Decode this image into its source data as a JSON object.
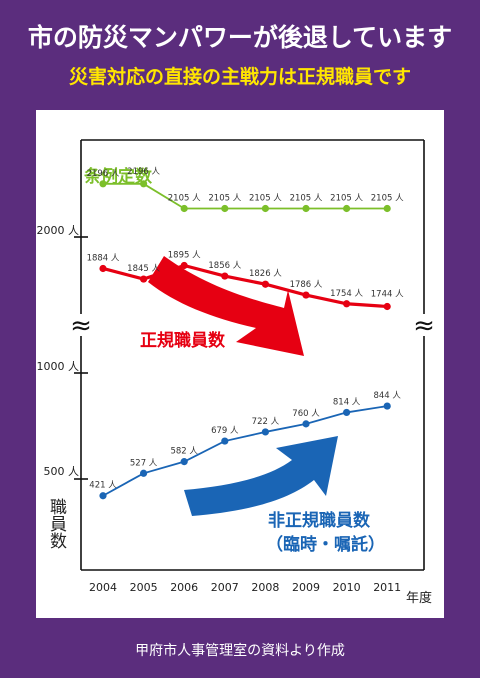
{
  "header": {
    "title": "市の防災マンパワーが後退しています",
    "subtitle": "災害対応の直接の主戦力は正規職員です"
  },
  "footer": {
    "source": "甲府市人事管理室の資料より作成"
  },
  "chart_data": {
    "type": "line",
    "x": [
      "2004",
      "2005",
      "2006",
      "2007",
      "2008",
      "2009",
      "2010",
      "2011"
    ],
    "xlabel": "年度",
    "ylabel": "職員数",
    "yticks": [
      "500 人",
      "1000 人",
      "2000 人"
    ],
    "axis_break_symbol": "≈",
    "series": [
      {
        "name": "条例定数",
        "color": "#7cbf2a",
        "values": [
          2196,
          2196,
          2105,
          2105,
          2105,
          2105,
          2105,
          2105
        ],
        "labels": [
          "2196 人",
          "2196 人",
          "2105 人",
          "2105 人",
          "2105 人",
          "2105 人",
          "2105 人",
          "2105 人"
        ]
      },
      {
        "name": "正規職員数",
        "color": "#e60012",
        "values": [
          1884,
          1845,
          1895,
          1856,
          1826,
          1786,
          1754,
          1744
        ],
        "labels": [
          "1884 人",
          "1845 人",
          "1895 人",
          "1856 人",
          "1826 人",
          "1786 人",
          "1754 人",
          "1744 人"
        ]
      },
      {
        "name": "非正規職員数",
        "name_sub": "（臨時・嘱託）",
        "color": "#1a65b5",
        "values": [
          421,
          527,
          582,
          679,
          722,
          760,
          814,
          844
        ],
        "labels": [
          "421 人",
          "527 人",
          "582 人",
          "679 人",
          "722 人",
          "760 人",
          "814 人",
          "844 人"
        ]
      }
    ]
  }
}
